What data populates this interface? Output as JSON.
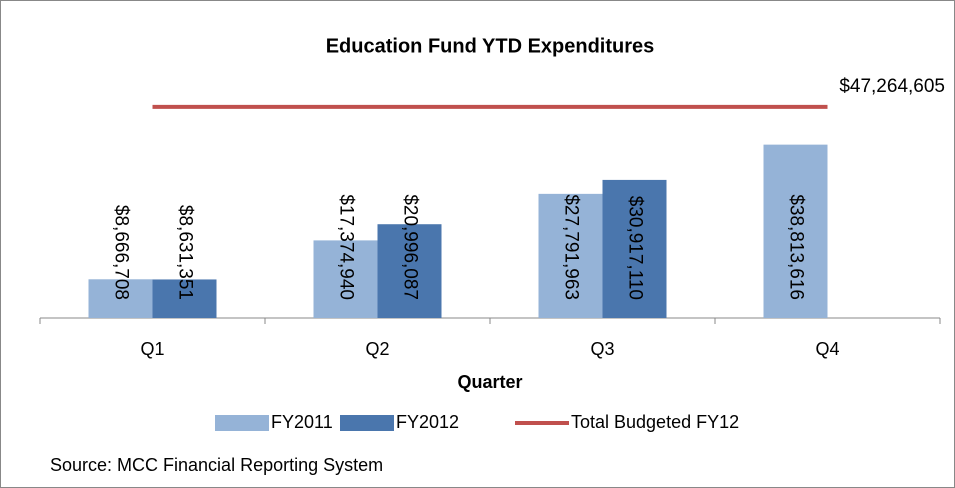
{
  "chart_data": {
    "type": "bar",
    "title": "Education Fund YTD Expenditures",
    "x_label": "Quarter",
    "source": "Source: MCC Financial Reporting System",
    "categories": [
      "Q1",
      "Q2",
      "Q3",
      "Q4"
    ],
    "series": [
      {
        "name": "FY2011",
        "type": "bar",
        "color": "#95b3d7",
        "values": [
          8666708,
          17374940,
          27791963,
          38813616
        ],
        "value_labels": [
          "$8,666,708",
          "$17,374,940",
          "$27,791,963",
          "$38,813,616"
        ]
      },
      {
        "name": "FY2012",
        "type": "bar",
        "color": "#4a76ad",
        "values": [
          8631351,
          20996087,
          30917110,
          null
        ],
        "value_labels": [
          "$8,631,351",
          "$20,996,087",
          "$30,917,110",
          null
        ]
      },
      {
        "name": "Total Budgeted FY12",
        "type": "line",
        "color": "#c0504d",
        "values": [
          47264605,
          47264605,
          47264605,
          47264605
        ],
        "value_labels": [
          null,
          null,
          null,
          "$47,264,605"
        ]
      }
    ],
    "ylim": [
      0,
      60000000
    ]
  }
}
